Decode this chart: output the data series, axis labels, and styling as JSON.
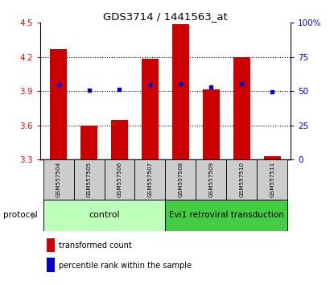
{
  "title": "GDS3714 / 1441563_at",
  "samples": [
    "GSM557504",
    "GSM557505",
    "GSM557506",
    "GSM557507",
    "GSM557508",
    "GSM557509",
    "GSM557510",
    "GSM557511"
  ],
  "bar_values": [
    4.27,
    3.6,
    3.65,
    4.185,
    4.49,
    3.915,
    4.2,
    3.33
  ],
  "bar_base": 3.3,
  "percentile_values": [
    3.96,
    3.91,
    3.915,
    3.96,
    3.965,
    3.935,
    3.965,
    3.895
  ],
  "ylim": [
    3.3,
    4.5
  ],
  "y2lim": [
    0,
    100
  ],
  "yticks": [
    3.3,
    3.6,
    3.9,
    4.2,
    4.5
  ],
  "y2ticks": [
    0,
    25,
    50,
    75,
    100
  ],
  "bar_color": "#cc0000",
  "dot_color": "#0000cc",
  "control_color": "#bbffbb",
  "transduction_color": "#44cc44",
  "protocol_label": "protocol",
  "control_label": "control",
  "transduction_label": "Evi1 retroviral transduction",
  "legend_bar_label": "transformed count",
  "legend_dot_label": "percentile rank within the sample",
  "label_area_color": "#cccccc",
  "bar_width": 0.55,
  "grid_yticks": [
    3.6,
    3.9,
    4.2
  ]
}
